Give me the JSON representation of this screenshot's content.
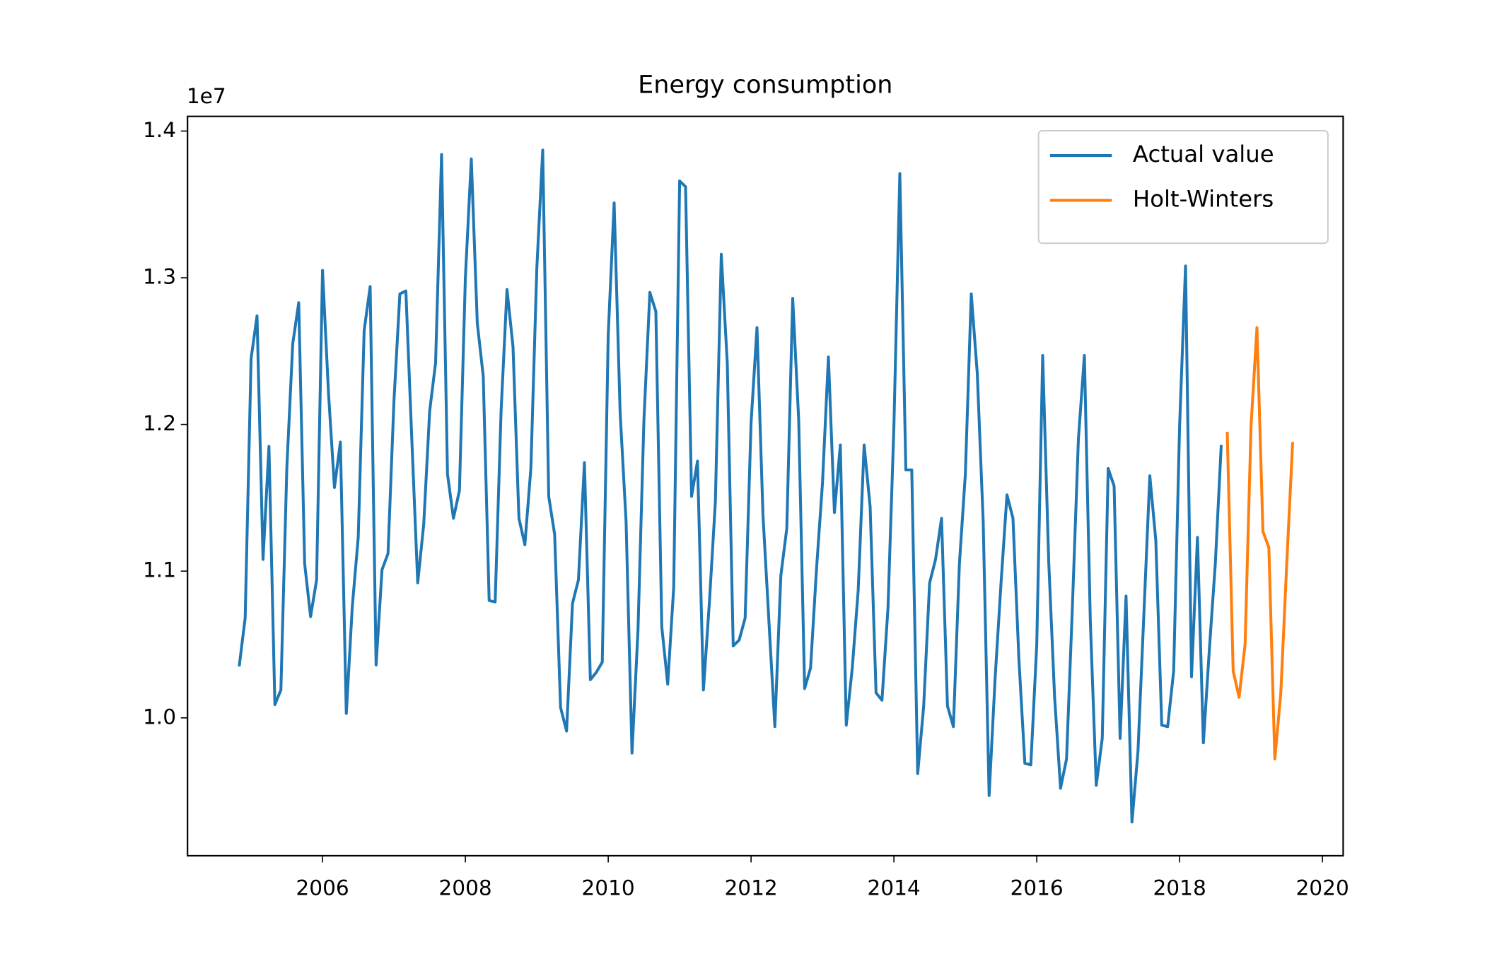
{
  "chart_data": {
    "type": "line",
    "title": "Energy consumption",
    "y_offset_label": "1e7",
    "xlim": [
      2004.11,
      2020.29
    ],
    "xticks": [
      2006,
      2008,
      2010,
      2012,
      2014,
      2016,
      2018,
      2020
    ],
    "ylim": [
      0.906,
      1.41
    ],
    "yticks": [
      {
        "value": 1,
        "label": "1.0"
      },
      1.1,
      1.2,
      1.3,
      1.4
    ],
    "legend": "upper right",
    "grid": false,
    "series": [
      {
        "name": "Actual value",
        "color": "#1f77b4",
        "x": [
          2004.833,
          2004.917,
          2005,
          2005.083,
          2005.167,
          2005.25,
          2005.333,
          2005.417,
          2005.5,
          2005.583,
          2005.667,
          2005.75,
          2005.833,
          2005.917,
          2006,
          2006.083,
          2006.167,
          2006.25,
          2006.333,
          2006.417,
          2006.5,
          2006.583,
          2006.667,
          2006.75,
          2006.833,
          2006.917,
          2007,
          2007.083,
          2007.167,
          2007.25,
          2007.333,
          2007.417,
          2007.5,
          2007.583,
          2007.667,
          2007.75,
          2007.833,
          2007.917,
          2008,
          2008.083,
          2008.167,
          2008.25,
          2008.333,
          2008.417,
          2008.5,
          2008.583,
          2008.667,
          2008.75,
          2008.833,
          2008.917,
          2009,
          2009.083,
          2009.167,
          2009.25,
          2009.333,
          2009.417,
          2009.5,
          2009.583,
          2009.667,
          2009.75,
          2009.833,
          2009.917,
          2010,
          2010.083,
          2010.167,
          2010.25,
          2010.333,
          2010.417,
          2010.5,
          2010.583,
          2010.667,
          2010.75,
          2010.833,
          2010.917,
          2011,
          2011.083,
          2011.167,
          2011.25,
          2011.333,
          2011.417,
          2011.5,
          2011.583,
          2011.667,
          2011.75,
          2011.833,
          2011.917,
          2012,
          2012.083,
          2012.167,
          2012.25,
          2012.333,
          2012.417,
          2012.5,
          2012.583,
          2012.667,
          2012.75,
          2012.833,
          2012.917,
          2013,
          2013.083,
          2013.167,
          2013.25,
          2013.333,
          2013.417,
          2013.5,
          2013.583,
          2013.667,
          2013.75,
          2013.833,
          2013.917,
          2014,
          2014.083,
          2014.167,
          2014.25,
          2014.333,
          2014.417,
          2014.5,
          2014.583,
          2014.667,
          2014.75,
          2014.833,
          2014.917,
          2015,
          2015.083,
          2015.167,
          2015.25,
          2015.333,
          2015.417,
          2015.5,
          2015.583,
          2015.667,
          2015.75,
          2015.833,
          2015.917,
          2016,
          2016.083,
          2016.167,
          2016.25,
          2016.333,
          2016.417,
          2016.5,
          2016.583,
          2016.667,
          2016.75,
          2016.833,
          2016.917,
          2017,
          2017.083,
          2017.167,
          2017.25,
          2017.333,
          2017.417,
          2017.5,
          2017.583,
          2017.667,
          2017.75,
          2017.833,
          2017.917,
          2018,
          2018.083,
          2018.167,
          2018.25,
          2018.333,
          2018.417,
          2018.5,
          2018.583
        ],
        "values": [
          1.035,
          1.068,
          1.245,
          1.274,
          1.108,
          1.185,
          1.009,
          1.019,
          1.17,
          1.255,
          1.283,
          1.105,
          1.069,
          1.094,
          1.305,
          1.222,
          1.157,
          1.188,
          1.003,
          1.076,
          1.123,
          1.264,
          1.294,
          1.036,
          1.101,
          1.112,
          1.216,
          1.289,
          1.291,
          1.19,
          1.092,
          1.132,
          1.209,
          1.242,
          1.384,
          1.166,
          1.136,
          1.155,
          1.3,
          1.381,
          1.269,
          1.233,
          1.08,
          1.079,
          1.209,
          1.292,
          1.253,
          1.136,
          1.118,
          1.17,
          1.306,
          1.387,
          1.151,
          1.125,
          1.007,
          0.991,
          1.078,
          1.094,
          1.174,
          1.026,
          1.031,
          1.038,
          1.261,
          1.351,
          1.208,
          1.134,
          0.976,
          1.06,
          1.203,
          1.29,
          1.277,
          1.062,
          1.023,
          1.089,
          1.366,
          1.362,
          1.151,
          1.175,
          1.019,
          1.079,
          1.147,
          1.316,
          1.242,
          1.049,
          1.053,
          1.068,
          1.201,
          1.266,
          1.138,
          1.066,
          0.994,
          1.097,
          1.129,
          1.286,
          1.203,
          1.02,
          1.034,
          1.102,
          1.16,
          1.246,
          1.14,
          1.186,
          0.995,
          1.034,
          1.087,
          1.186,
          1.144,
          1.017,
          1.012,
          1.075,
          1.199,
          1.371,
          1.169,
          1.169,
          0.962,
          1.008,
          1.092,
          1.108,
          1.136,
          1.008,
          0.994,
          1.105,
          1.166,
          1.289,
          1.235,
          1.134,
          0.947,
          1.027,
          1.092,
          1.152,
          1.136,
          1.04,
          0.969,
          0.968,
          1.05,
          1.247,
          1.107,
          1.014,
          0.952,
          0.972,
          1.077,
          1.19,
          1.247,
          1.066,
          0.954,
          0.986,
          1.17,
          1.158,
          0.986,
          1.083,
          0.929,
          0.977,
          1.071,
          1.165,
          1.121,
          0.995,
          0.994,
          1.032,
          1.199,
          1.308,
          1.028,
          1.123,
          0.983,
          1.047,
          1.105,
          1.186
        ]
      },
      {
        "name": "Holt-Winters",
        "color": "#ff7f0e",
        "x": [
          2018.667,
          2018.75,
          2018.833,
          2018.917,
          2019,
          2019.083,
          2019.167,
          2019.25,
          2019.333,
          2019.417,
          2019.5,
          2019.583
        ],
        "values": [
          1.195,
          1.032,
          1.014,
          1.05,
          1.199,
          1.266,
          1.127,
          1.116,
          0.972,
          1.017,
          1.105,
          1.188
        ]
      }
    ]
  }
}
